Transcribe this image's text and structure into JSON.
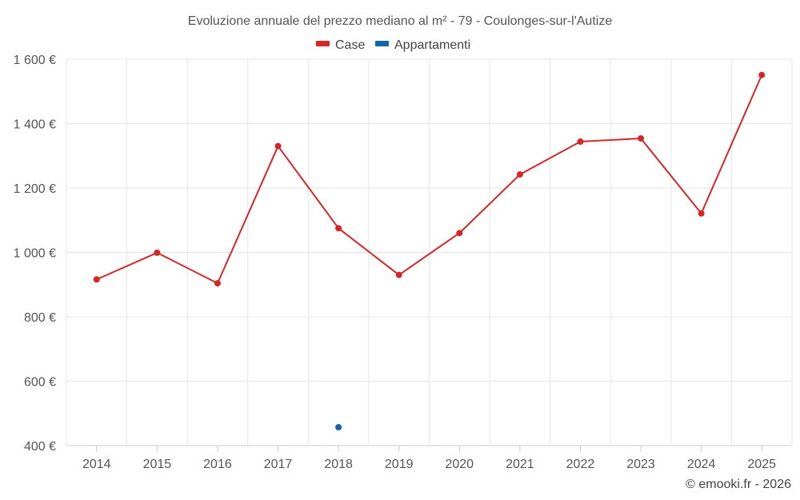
{
  "chart_data": {
    "type": "line",
    "title": "Evoluzione annuale del prezzo mediano al m² - 79 - Coulonges-sur-l'Autize",
    "categories": [
      "2014",
      "2015",
      "2016",
      "2017",
      "2018",
      "2019",
      "2020",
      "2021",
      "2022",
      "2023",
      "2024",
      "2025"
    ],
    "series": [
      {
        "name": "Case",
        "color": "#d62728",
        "values": [
          916,
          999,
          904,
          1330,
          1075,
          930,
          1060,
          1242,
          1344,
          1354,
          1121,
          1551
        ]
      },
      {
        "name": "Appartamenti",
        "color": "#1565a7",
        "values": [
          null,
          null,
          null,
          null,
          457,
          null,
          null,
          null,
          null,
          null,
          null,
          null
        ]
      }
    ],
    "y_ticks": [
      "400 €",
      "600 €",
      "800 €",
      "1 000 €",
      "1 200 €",
      "1 400 €",
      "1 600 €"
    ],
    "ylim": [
      400,
      1600
    ],
    "legend": "top-center",
    "grid": true
  },
  "credit": "© emooki.fr - 2026"
}
